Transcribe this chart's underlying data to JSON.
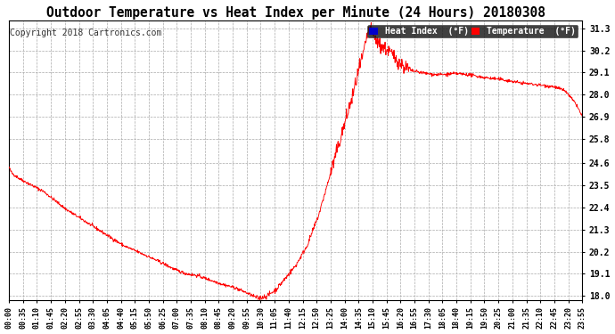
{
  "title": "Outdoor Temperature vs Heat Index per Minute (24 Hours) 20180308",
  "copyright": "Copyright 2018 Cartronics.com",
  "legend_labels": [
    "Heat Index  (°F)",
    "Temperature  (°F)"
  ],
  "legend_colors": [
    "#0000cc",
    "#ff0000"
  ],
  "line_color": "#ff0000",
  "background_color": "#ffffff",
  "plot_bg_color": "#ffffff",
  "grid_color": "#aaaaaa",
  "ylim": [
    17.8,
    31.7
  ],
  "yticks": [
    18.0,
    19.1,
    20.2,
    21.3,
    22.4,
    23.5,
    24.6,
    25.8,
    26.9,
    28.0,
    29.1,
    30.2,
    31.3
  ],
  "xtick_labels": [
    "00:00",
    "00:35",
    "01:10",
    "01:45",
    "02:20",
    "02:55",
    "03:30",
    "04:05",
    "04:40",
    "05:15",
    "05:50",
    "06:25",
    "07:00",
    "07:35",
    "08:10",
    "08:45",
    "09:20",
    "09:55",
    "10:30",
    "11:05",
    "11:40",
    "12:15",
    "12:50",
    "13:25",
    "14:00",
    "14:35",
    "15:10",
    "15:45",
    "16:20",
    "16:55",
    "17:30",
    "18:05",
    "18:40",
    "19:15",
    "19:50",
    "20:25",
    "21:00",
    "21:35",
    "22:10",
    "22:45",
    "23:20",
    "23:55"
  ],
  "num_minutes": 1440,
  "control_times": [
    0.0,
    0.005,
    0.02,
    0.06,
    0.1,
    0.15,
    0.2,
    0.24,
    0.27,
    0.29,
    0.31,
    0.33,
    0.35,
    0.37,
    0.395,
    0.415,
    0.435,
    0.45,
    0.465,
    0.48,
    0.5,
    0.52,
    0.54,
    0.56,
    0.575,
    0.59,
    0.6,
    0.61,
    0.618,
    0.622,
    0.625,
    0.63,
    0.638,
    0.645,
    0.655,
    0.665,
    0.675,
    0.685,
    0.7,
    0.72,
    0.74,
    0.76,
    0.78,
    0.8,
    0.83,
    0.86,
    0.89,
    0.92,
    0.95,
    0.97,
    0.99,
    1.0
  ],
  "control_values": [
    24.4,
    24.1,
    23.8,
    23.2,
    22.3,
    21.4,
    20.5,
    20.0,
    19.6,
    19.3,
    19.1,
    19.0,
    18.8,
    18.6,
    18.4,
    18.15,
    17.88,
    18.0,
    18.3,
    18.8,
    19.5,
    20.5,
    22.0,
    24.0,
    25.5,
    27.0,
    28.0,
    29.2,
    30.0,
    30.5,
    31.0,
    31.3,
    30.8,
    30.5,
    30.3,
    30.1,
    29.8,
    29.5,
    29.2,
    29.1,
    29.0,
    29.0,
    29.05,
    29.0,
    28.85,
    28.75,
    28.6,
    28.5,
    28.4,
    28.2,
    27.5,
    26.9
  ]
}
